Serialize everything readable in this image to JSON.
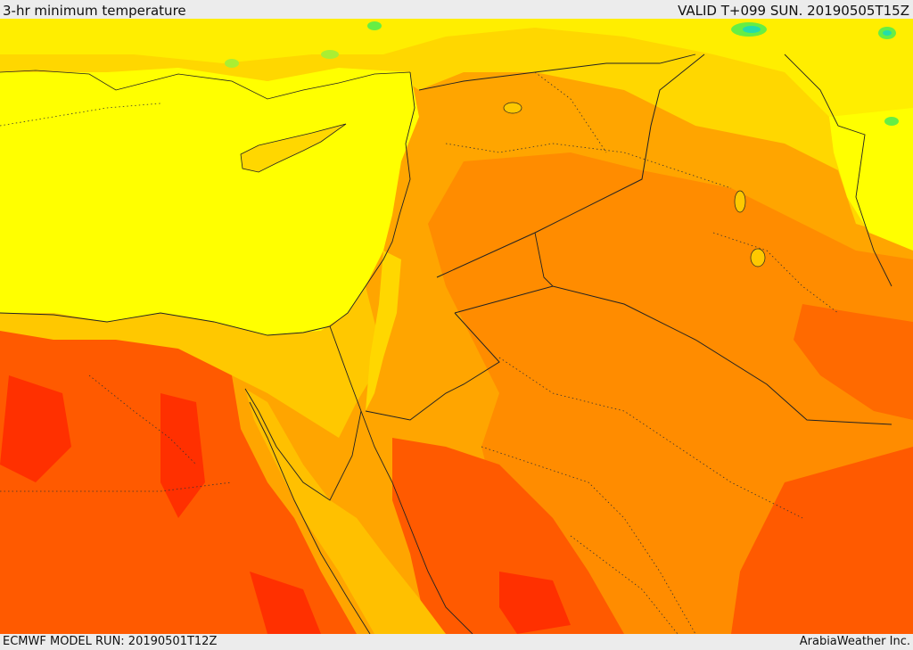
{
  "header": {
    "title": "3-hr minimum temperature",
    "valid": "VALID T+099 SUN. 20190505T15Z"
  },
  "footer": {
    "model_run": "ECMWF MODEL RUN: 20190501T12Z",
    "credit": "ArabiaWeather Inc."
  },
  "colors": {
    "sea_yellow": "#ffff00",
    "light_orange": "#ffd700",
    "orange": "#ffa500",
    "dark_orange": "#ff8c00",
    "red_orange": "#ff5a00",
    "red": "#ff3000",
    "green_cool": "#66ee44",
    "cyan_cool": "#22ddaa"
  }
}
